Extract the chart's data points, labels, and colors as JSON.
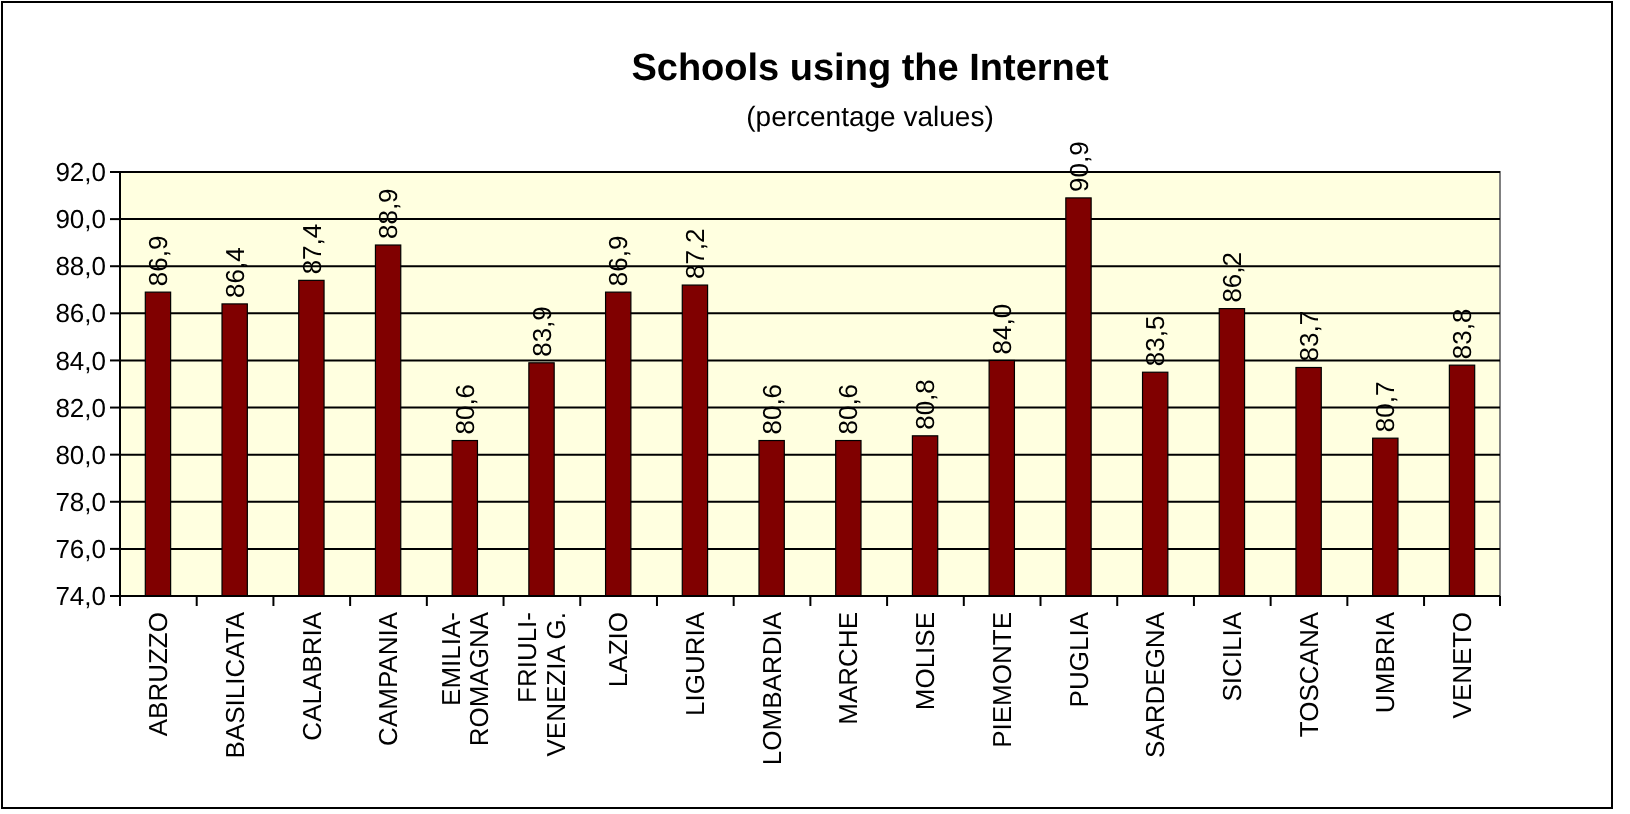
{
  "chart_data": {
    "type": "bar",
    "title": "Schools using the Internet",
    "subtitle": "(percentage values)",
    "categories": [
      "ABRUZZO",
      "BASILICATA",
      "CALABRIA",
      "CAMPANIA",
      "EMILIA-ROMAGNA",
      "FRIULI-VENEZIA G.",
      "LAZIO",
      "LIGURIA",
      "LOMBARDIA",
      "MARCHE",
      "MOLISE",
      "PIEMONTE",
      "PUGLIA",
      "SARDEGNA",
      "SICILIA",
      "TOSCANA",
      "UMBRIA",
      "VENETO"
    ],
    "values": [
      86.9,
      86.4,
      87.4,
      88.9,
      80.6,
      83.9,
      86.9,
      87.2,
      80.6,
      80.6,
      80.8,
      84.0,
      90.9,
      83.5,
      86.2,
      83.7,
      80.7,
      83.8
    ],
    "value_labels": [
      "86,9",
      "86,4",
      "87,4",
      "88,9",
      "80,6",
      "83,9",
      "86,9",
      "87,2",
      "80,6",
      "80,6",
      "80,8",
      "84,0",
      "90,9",
      "83,5",
      "86,2",
      "83,7",
      "80,7",
      "83,8"
    ],
    "color": "#800000",
    "ylim": [
      74,
      92
    ],
    "yticks": [
      {
        "value": 74,
        "label": "74,0"
      },
      {
        "value": 76,
        "label": "76,0"
      },
      {
        "value": 78,
        "label": "78,0"
      },
      {
        "value": 80,
        "label": "80,0"
      },
      {
        "value": 82,
        "label": "82,0"
      },
      {
        "value": 84,
        "label": "84,0"
      },
      {
        "value": 86,
        "label": "86,0"
      },
      {
        "value": 88,
        "label": "88,0"
      },
      {
        "value": 90,
        "label": "90,0"
      },
      {
        "value": 92,
        "label": "92,0"
      }
    ],
    "grid": "y"
  }
}
